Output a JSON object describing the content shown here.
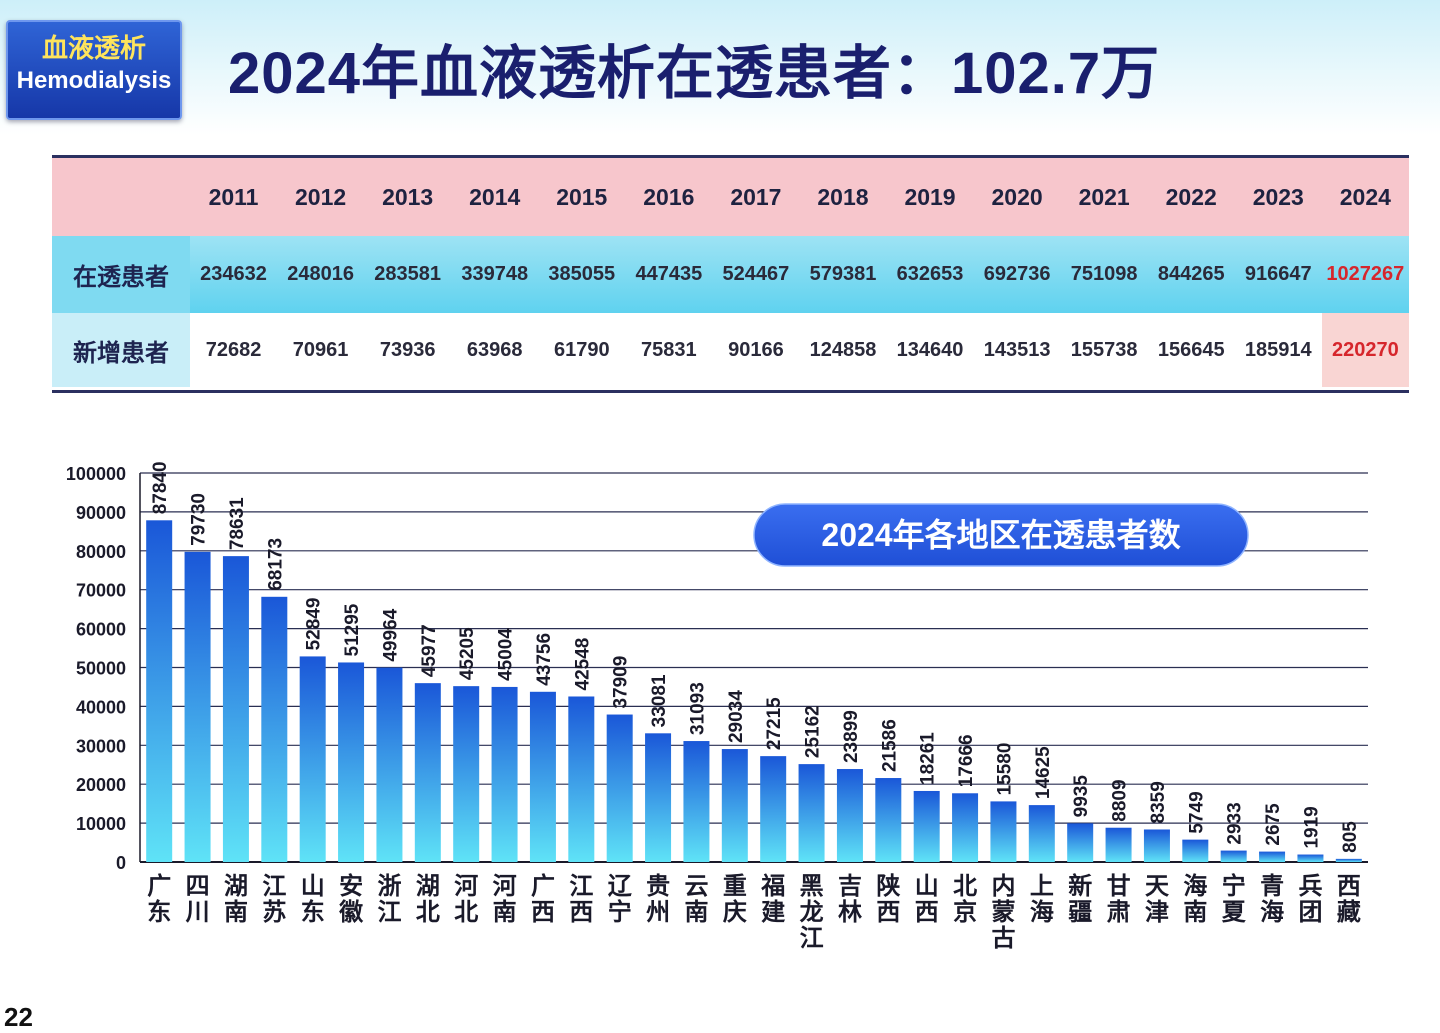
{
  "header": {
    "badge_line1": "血液透析",
    "badge_line2": "Hemodialysis",
    "title": "2024年血液透析在透患者：102.7万"
  },
  "table": {
    "years": [
      "2011",
      "2012",
      "2013",
      "2014",
      "2015",
      "2016",
      "2017",
      "2018",
      "2019",
      "2020",
      "2021",
      "2022",
      "2023",
      "2024"
    ],
    "rows": [
      {
        "label": "在透患者",
        "values": [
          "234632",
          "248016",
          "283581",
          "339748",
          "385055",
          "447435",
          "524467",
          "579381",
          "632653",
          "692736",
          "751098",
          "844265",
          "916647",
          "1027267"
        ]
      },
      {
        "label": "新增患者",
        "values": [
          "72682",
          "70961",
          "73936",
          "63968",
          "61790",
          "75831",
          "90166",
          "124858",
          "134640",
          "143513",
          "155738",
          "156645",
          "185914",
          "220270"
        ]
      }
    ],
    "highlight_color": "#d6262c"
  },
  "chart_data": {
    "type": "bar",
    "title": "2024年各地区在透患者数",
    "categories": [
      "广东",
      "四川",
      "湖南",
      "江苏",
      "山东",
      "安徽",
      "浙江",
      "湖北",
      "河北",
      "河南",
      "广西",
      "江西",
      "辽宁",
      "贵州",
      "云南",
      "重庆",
      "福建",
      "黑龙江",
      "吉林",
      "陕西",
      "山西",
      "北京",
      "内蒙古",
      "上海",
      "新疆",
      "甘肃",
      "天津",
      "海南",
      "宁夏",
      "青海",
      "兵团",
      "西藏"
    ],
    "values": [
      87840,
      79730,
      78631,
      68173,
      52849,
      51295,
      49964,
      45977,
      45205,
      45004,
      43756,
      42548,
      37909,
      33081,
      31093,
      29034,
      27215,
      25162,
      23899,
      21586,
      18261,
      17666,
      15580,
      14625,
      9935,
      8809,
      8359,
      5749,
      2933,
      2675,
      1919,
      805
    ],
    "yticks": [
      0,
      10000,
      20000,
      30000,
      40000,
      50000,
      60000,
      70000,
      80000,
      90000,
      100000
    ],
    "ylim": [
      0,
      100000
    ],
    "grid": true,
    "bar_color_top": "#1a57d8",
    "bar_color_bottom": "#5fe3f7",
    "title_box_color": "#1f4fd6"
  },
  "footer": {
    "page_number": "22"
  }
}
